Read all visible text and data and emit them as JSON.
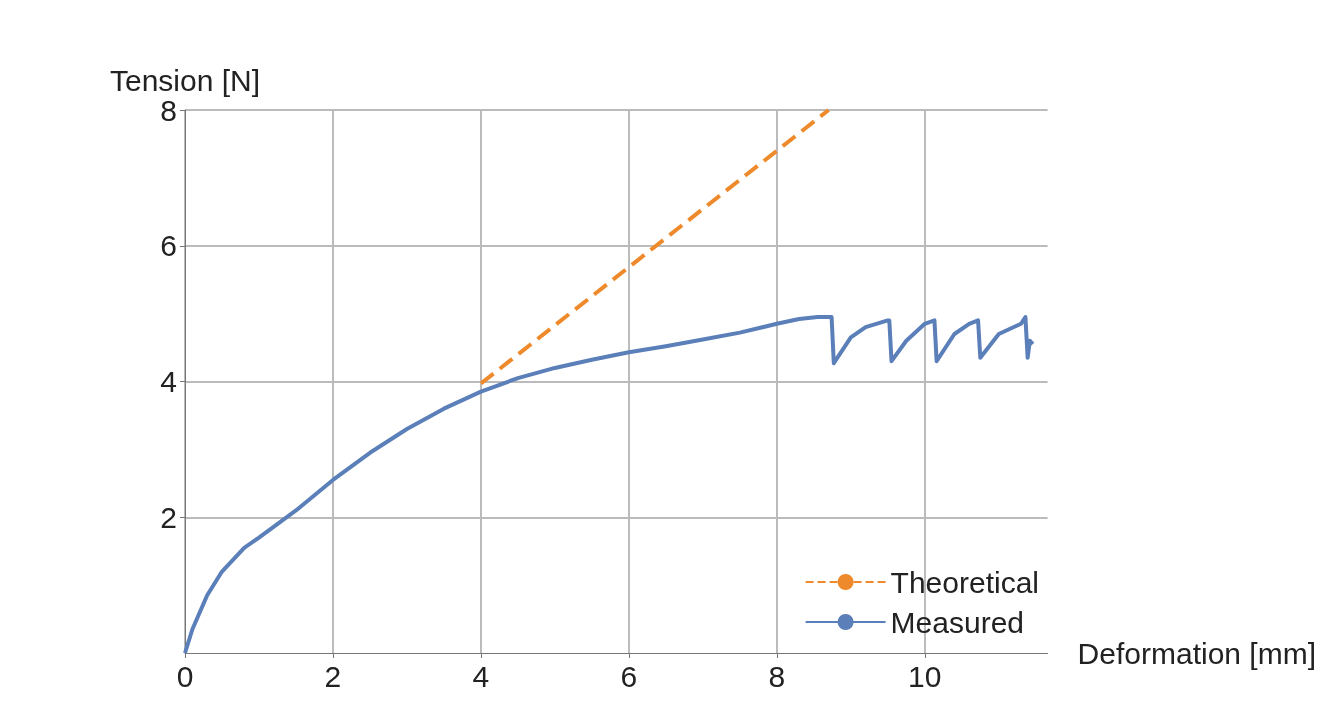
{
  "chart_data": {
    "type": "line",
    "xlabel": "Deformation [mm]",
    "ylabel": "Tension [N]",
    "xlim": [
      0,
      11.66
    ],
    "ylim": [
      0,
      8
    ],
    "xticks": [
      0,
      2,
      4,
      6,
      8,
      10
    ],
    "yticks": [
      2,
      4,
      6,
      8
    ],
    "grid": true,
    "legend": "bottom right",
    "marker": "none",
    "series": [
      {
        "name": "Theoretical",
        "color": "#ef8a2c",
        "line_style": "dashed",
        "x": [
          4,
          8.7
        ],
        "values": [
          3.97,
          8
        ]
      },
      {
        "name": "Measured",
        "color": "#5b7fb9",
        "line_style": "solid",
        "x": [
          0,
          0.1,
          0.3,
          0.5,
          0.8,
          1,
          1.5,
          2,
          2.5,
          3,
          3.5,
          4,
          4.5,
          5,
          5.5,
          6,
          6.5,
          7,
          7.5,
          8,
          8.3,
          8.55,
          8.74,
          8.77,
          9,
          9.2,
          9.5,
          9.52,
          9.55,
          9.75,
          10,
          10.13,
          10.16,
          10.4,
          10.6,
          10.72,
          10.75,
          11,
          11.3,
          11.36,
          11.39,
          11.42,
          11.46
        ],
        "values": [
          0,
          0.35,
          0.85,
          1.2,
          1.55,
          1.7,
          2.1,
          2.55,
          2.95,
          3.3,
          3.6,
          3.85,
          4.05,
          4.2,
          4.32,
          4.43,
          4.52,
          4.62,
          4.72,
          4.85,
          4.92,
          4.95,
          4.95,
          4.27,
          4.65,
          4.8,
          4.9,
          4.9,
          4.3,
          4.6,
          4.85,
          4.9,
          4.3,
          4.7,
          4.85,
          4.9,
          4.35,
          4.7,
          4.85,
          4.95,
          4.35,
          4.6,
          4.55
        ]
      }
    ]
  }
}
